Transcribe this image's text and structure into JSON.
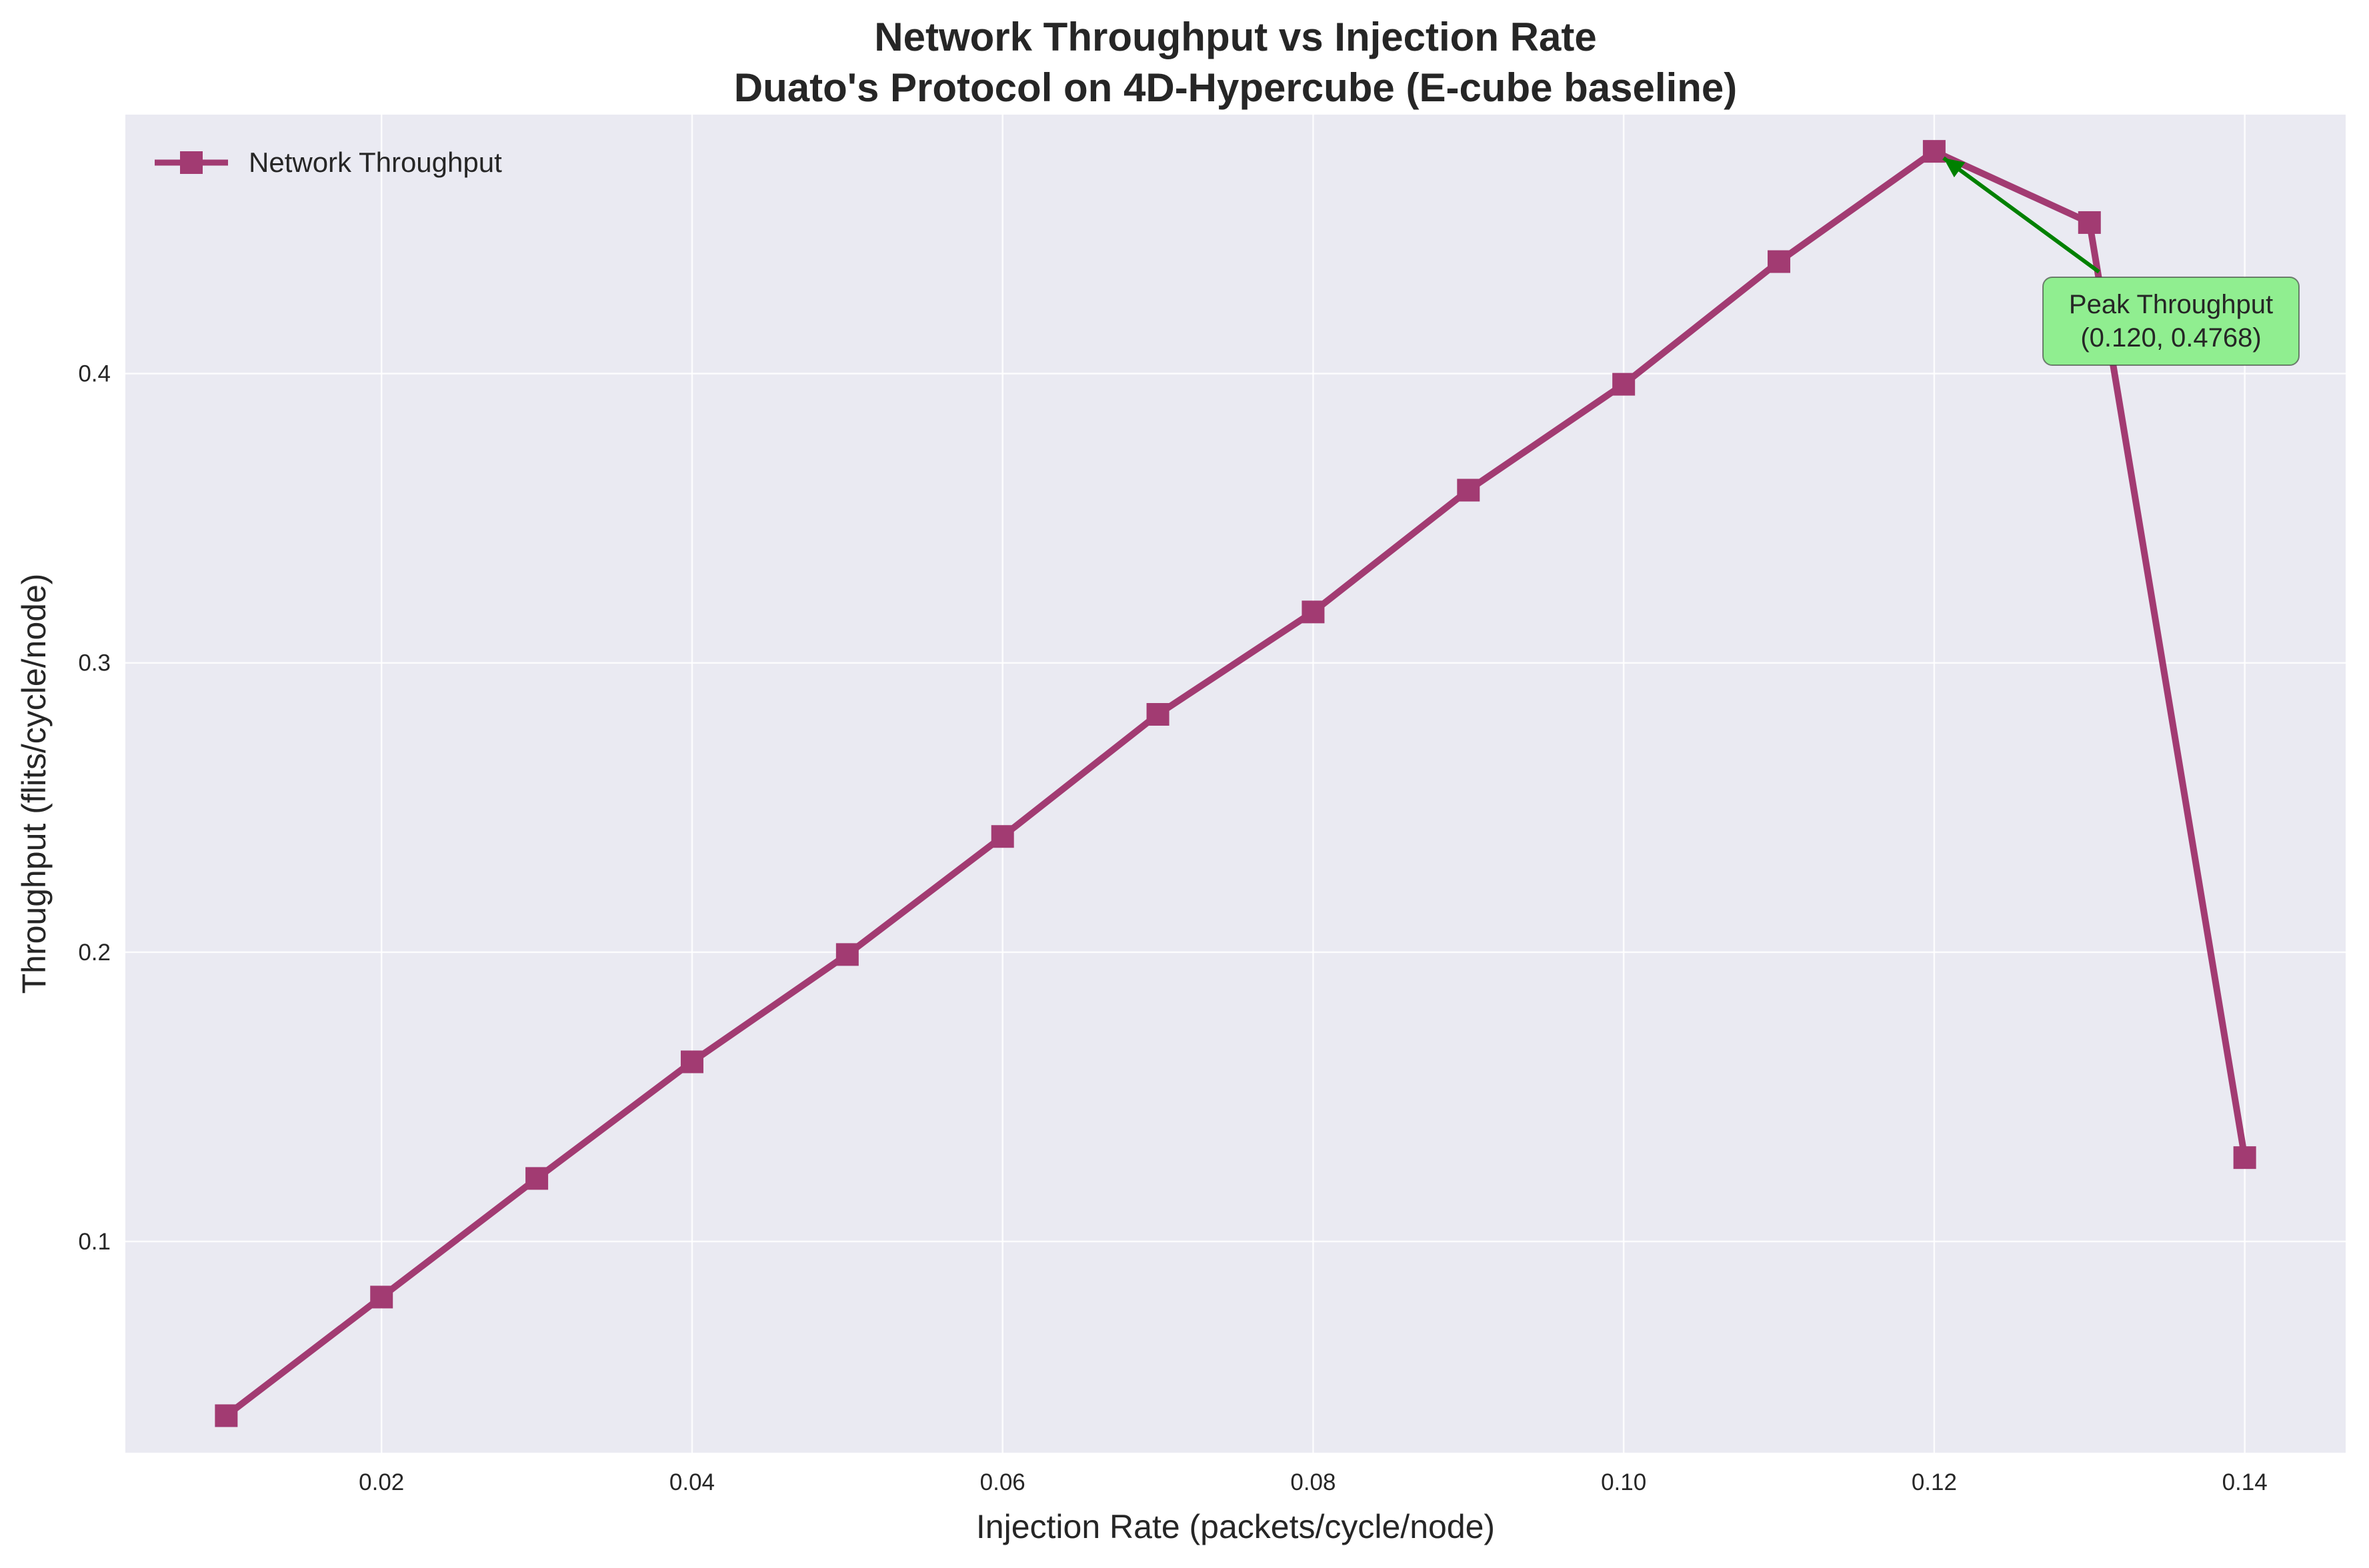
{
  "chart_data": {
    "type": "line",
    "title_line1": "Network Throughput vs Injection Rate",
    "title_line2": "Duato's Protocol on 4D-Hypercube (E-cube baseline)",
    "xlabel": "Injection Rate (packets/cycle/node)",
    "ylabel": "Throughput (flits/cycle/node)",
    "xlim": [
      0.0035,
      0.1465
    ],
    "ylim": [
      0.027,
      0.4895
    ],
    "xticks": [
      "0.02",
      "0.04",
      "0.06",
      "0.08",
      "0.10",
      "0.12",
      "0.14"
    ],
    "yticks": [
      "0.1",
      "0.2",
      "0.3",
      "0.4"
    ],
    "grid": true,
    "legend_position": "upper-left",
    "series": [
      {
        "name": "Network Throughput",
        "color": "#a23b72",
        "marker": "square",
        "x": [
          0.01,
          0.02,
          0.03,
          0.04,
          0.05,
          0.06,
          0.07,
          0.08,
          0.09,
          0.1,
          0.11,
          0.12,
          0.13,
          0.14
        ],
        "y": [
          0.0398,
          0.0808,
          0.1218,
          0.1621,
          0.1992,
          0.24,
          0.2822,
          0.3176,
          0.3597,
          0.3963,
          0.4387,
          0.4768,
          0.4522,
          0.129
        ]
      }
    ],
    "annotation": {
      "line1": "Peak Throughput",
      "line2": "(0.120, 0.4768)",
      "point": [
        0.12,
        0.4768
      ],
      "box_color": "#90ee90",
      "arrow_color": "#008000"
    },
    "colors": {
      "plot_background": "#eaeaf2",
      "grid": "#ffffff"
    }
  }
}
